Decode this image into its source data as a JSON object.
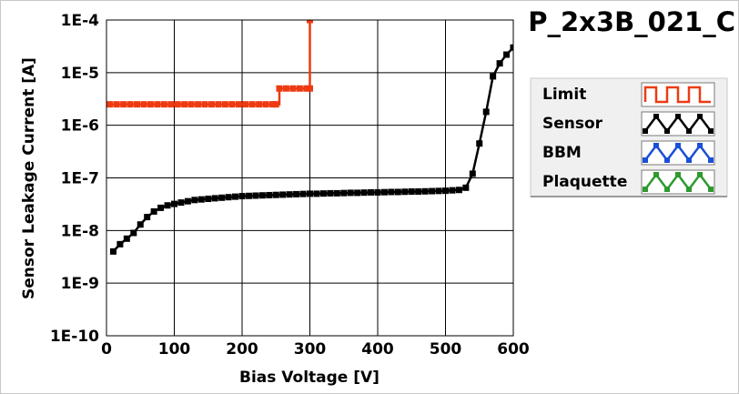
{
  "chart_data": {
    "type": "line",
    "title": "P_2x3B_021_C",
    "xlabel": "Bias Voltage [V]",
    "ylabel": "Sensor Leakage Current [A]",
    "xlim": [
      0,
      600
    ],
    "ylim": [
      1e-10,
      0.0001
    ],
    "yscale": "log",
    "grid": true,
    "legend_position": "right",
    "x_ticks": [
      {
        "value": 0,
        "label": "0"
      },
      {
        "value": 100,
        "label": "100"
      },
      {
        "value": 200,
        "label": "200"
      },
      {
        "value": 300,
        "label": "300"
      },
      {
        "value": 400,
        "label": "400"
      },
      {
        "value": 500,
        "label": "500"
      },
      {
        "value": 600,
        "label": "600"
      }
    ],
    "y_ticks": [
      {
        "value": 1e-10,
        "label": "1E-10"
      },
      {
        "value": 1e-09,
        "label": "1E-9"
      },
      {
        "value": 1e-08,
        "label": "1E-8"
      },
      {
        "value": 1e-07,
        "label": "1E-7"
      },
      {
        "value": 1e-06,
        "label": "1E-6"
      },
      {
        "value": 1e-05,
        "label": "1E-5"
      },
      {
        "value": 0.0001,
        "label": "1E-4"
      }
    ],
    "series": [
      {
        "name": "Limit",
        "color": "#ee3a12",
        "step": true,
        "markers": true,
        "points": [
          [
            5,
            2.5e-06
          ],
          [
            15,
            2.5e-06
          ],
          [
            25,
            2.5e-06
          ],
          [
            35,
            2.5e-06
          ],
          [
            45,
            2.5e-06
          ],
          [
            55,
            2.5e-06
          ],
          [
            65,
            2.5e-06
          ],
          [
            75,
            2.5e-06
          ],
          [
            85,
            2.5e-06
          ],
          [
            95,
            2.5e-06
          ],
          [
            105,
            2.5e-06
          ],
          [
            115,
            2.5e-06
          ],
          [
            125,
            2.5e-06
          ],
          [
            135,
            2.5e-06
          ],
          [
            145,
            2.5e-06
          ],
          [
            155,
            2.5e-06
          ],
          [
            165,
            2.5e-06
          ],
          [
            175,
            2.5e-06
          ],
          [
            185,
            2.5e-06
          ],
          [
            195,
            2.5e-06
          ],
          [
            205,
            2.5e-06
          ],
          [
            215,
            2.5e-06
          ],
          [
            225,
            2.5e-06
          ],
          [
            235,
            2.5e-06
          ],
          [
            245,
            2.5e-06
          ],
          [
            250,
            2.5e-06
          ],
          [
            255,
            5e-06
          ],
          [
            265,
            5e-06
          ],
          [
            275,
            5e-06
          ],
          [
            285,
            5e-06
          ],
          [
            295,
            5e-06
          ],
          [
            300,
            5e-06
          ],
          [
            300,
            0.0001
          ]
        ]
      },
      {
        "name": "Sensor",
        "color": "#000000",
        "step": false,
        "markers": true,
        "points": [
          [
            10,
            4e-09
          ],
          [
            20,
            5.5e-09
          ],
          [
            30,
            7e-09
          ],
          [
            40,
            9e-09
          ],
          [
            50,
            1.3e-08
          ],
          [
            60,
            1.8e-08
          ],
          [
            70,
            2.3e-08
          ],
          [
            80,
            2.7e-08
          ],
          [
            90,
            3e-08
          ],
          [
            100,
            3.2e-08
          ],
          [
            110,
            3.4e-08
          ],
          [
            120,
            3.6e-08
          ],
          [
            130,
            3.8e-08
          ],
          [
            140,
            3.9e-08
          ],
          [
            150,
            4e-08
          ],
          [
            160,
            4.1e-08
          ],
          [
            170,
            4.2e-08
          ],
          [
            180,
            4.3e-08
          ],
          [
            190,
            4.4e-08
          ],
          [
            200,
            4.5e-08
          ],
          [
            210,
            4.55e-08
          ],
          [
            220,
            4.6e-08
          ],
          [
            230,
            4.65e-08
          ],
          [
            240,
            4.7e-08
          ],
          [
            250,
            4.75e-08
          ],
          [
            260,
            4.8e-08
          ],
          [
            270,
            4.85e-08
          ],
          [
            280,
            4.9e-08
          ],
          [
            290,
            4.95e-08
          ],
          [
            300,
            5e-08
          ],
          [
            310,
            5e-08
          ],
          [
            320,
            5.05e-08
          ],
          [
            330,
            5.1e-08
          ],
          [
            340,
            5.1e-08
          ],
          [
            350,
            5.15e-08
          ],
          [
            360,
            5.2e-08
          ],
          [
            370,
            5.2e-08
          ],
          [
            380,
            5.25e-08
          ],
          [
            390,
            5.3e-08
          ],
          [
            400,
            5.3e-08
          ],
          [
            410,
            5.35e-08
          ],
          [
            420,
            5.4e-08
          ],
          [
            430,
            5.4e-08
          ],
          [
            440,
            5.45e-08
          ],
          [
            450,
            5.5e-08
          ],
          [
            460,
            5.5e-08
          ],
          [
            470,
            5.55e-08
          ],
          [
            480,
            5.6e-08
          ],
          [
            490,
            5.65e-08
          ],
          [
            500,
            5.7e-08
          ],
          [
            510,
            5.8e-08
          ],
          [
            520,
            5.9e-08
          ],
          [
            530,
            6.5e-08
          ],
          [
            540,
            1.2e-07
          ],
          [
            550,
            4.5e-07
          ],
          [
            560,
            1.8e-06
          ],
          [
            570,
            8.5e-06
          ],
          [
            580,
            1.5e-05
          ],
          [
            590,
            2.2e-05
          ],
          [
            600,
            3e-05
          ]
        ]
      },
      {
        "name": "BBM",
        "color": "#1a4fd8",
        "step": false,
        "markers": false,
        "points": []
      },
      {
        "name": "Plaquette",
        "color": "#2e9a2e",
        "step": false,
        "markers": false,
        "points": []
      }
    ]
  }
}
